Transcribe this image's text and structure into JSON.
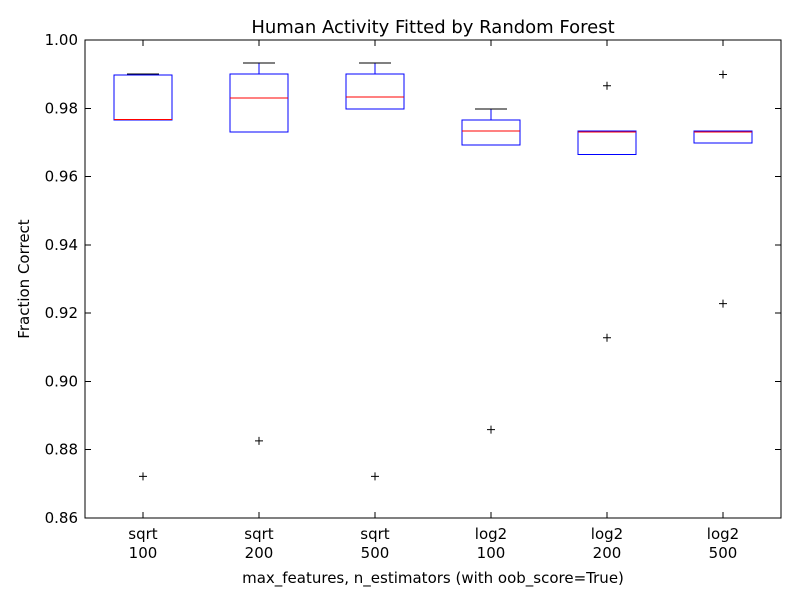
{
  "chart_data": {
    "type": "box",
    "title": "Human Activity Fitted by Random Forest",
    "xlabel": "max_features, n_estimators (with oob_score=True)",
    "ylabel": "Fraction Correct",
    "ylim": [
      0.86,
      1.0
    ],
    "yticks": [
      "0.86",
      "0.88",
      "0.90",
      "0.92",
      "0.94",
      "0.96",
      "0.98",
      "1.00"
    ],
    "grid": false,
    "colors": {
      "box": "#0000ff",
      "median": "#ff0000",
      "cap": "#000000",
      "flier": "#000000"
    },
    "categories": [
      {
        "line1": "sqrt",
        "line2": "100"
      },
      {
        "line1": "sqrt",
        "line2": "200"
      },
      {
        "line1": "sqrt",
        "line2": "500"
      },
      {
        "line1": "log2",
        "line2": "100"
      },
      {
        "line1": "log2",
        "line2": "200"
      },
      {
        "line1": "log2",
        "line2": "500"
      }
    ],
    "boxes": [
      {
        "whisker_low": 0.9765,
        "q1": 0.9765,
        "median": 0.9767,
        "q3": 0.9898,
        "whisker_high": 0.99,
        "fliers": [
          0.8722
        ]
      },
      {
        "whisker_low": 0.973,
        "q1": 0.973,
        "median": 0.983,
        "q3": 0.99,
        "whisker_high": 0.9932,
        "fliers": [
          0.8826
        ]
      },
      {
        "whisker_low": 0.9798,
        "q1": 0.9798,
        "median": 0.9833,
        "q3": 0.99,
        "whisker_high": 0.9932,
        "fliers": [
          0.8722
        ]
      },
      {
        "whisker_low": 0.9692,
        "q1": 0.9692,
        "median": 0.9733,
        "q3": 0.9765,
        "whisker_high": 0.9798,
        "fliers": [
          0.8859
        ]
      },
      {
        "whisker_low": 0.9664,
        "q1": 0.9664,
        "median": 0.9731,
        "q3": 0.9733,
        "whisker_high": 0.9733,
        "fliers": [
          0.9128,
          0.9866
        ]
      },
      {
        "whisker_low": 0.9698,
        "q1": 0.9698,
        "median": 0.9731,
        "q3": 0.9733,
        "whisker_high": 0.9733,
        "fliers": [
          0.9228,
          0.9899
        ]
      }
    ]
  }
}
